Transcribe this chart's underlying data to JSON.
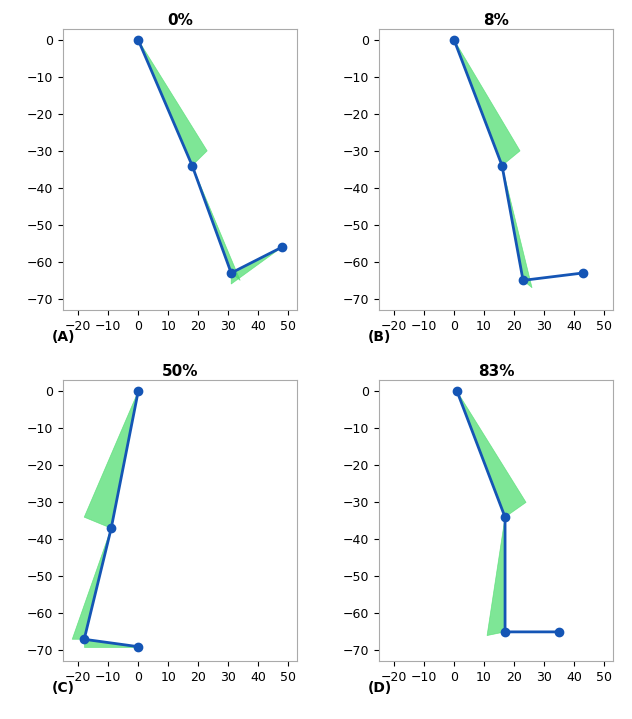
{
  "panels": [
    {
      "title": "0%",
      "label": "(A)",
      "xlim": [
        -25,
        53
      ],
      "ylim": [
        -73,
        3
      ],
      "xticks": [
        -20,
        -10,
        0,
        10,
        20,
        30,
        40,
        50
      ],
      "yticks": [
        -70,
        -60,
        -50,
        -40,
        -30,
        -20,
        -10,
        0
      ],
      "joints": [
        [
          0,
          0
        ],
        [
          18,
          -34
        ],
        [
          31,
          -63
        ],
        [
          48,
          -56
        ]
      ],
      "bands": [
        [
          [
            0,
            0
          ],
          [
            0,
            0
          ],
          [
            23,
            -30
          ],
          [
            18,
            -34
          ]
        ],
        [
          [
            18,
            -34
          ],
          [
            18,
            -34
          ],
          [
            34,
            -65
          ],
          [
            31,
            -63
          ]
        ],
        [
          [
            31,
            -63
          ],
          [
            31,
            -66
          ],
          [
            48,
            -56
          ],
          [
            48,
            -56
          ]
        ]
      ]
    },
    {
      "title": "8%",
      "label": "(B)",
      "xlim": [
        -25,
        53
      ],
      "ylim": [
        -73,
        3
      ],
      "xticks": [
        -20,
        -10,
        0,
        10,
        20,
        30,
        40,
        50
      ],
      "yticks": [
        -70,
        -60,
        -50,
        -40,
        -30,
        -20,
        -10,
        0
      ],
      "joints": [
        [
          0,
          0
        ],
        [
          16,
          -34
        ],
        [
          23,
          -65
        ],
        [
          43,
          -63
        ]
      ],
      "bands": [
        [
          [
            0,
            0
          ],
          [
            0,
            0
          ],
          [
            22,
            -30
          ],
          [
            16,
            -34
          ]
        ],
        [
          [
            16,
            -34
          ],
          [
            16,
            -34
          ],
          [
            26,
            -67
          ],
          [
            23,
            -65
          ]
        ],
        [
          [
            23,
            -65
          ],
          [
            23,
            -65
          ],
          [
            43,
            -63
          ],
          [
            43,
            -63
          ]
        ]
      ]
    },
    {
      "title": "50%",
      "label": "(C)",
      "xlim": [
        -25,
        53
      ],
      "ylim": [
        -73,
        3
      ],
      "xticks": [
        -20,
        -10,
        0,
        10,
        20,
        30,
        40,
        50
      ],
      "yticks": [
        -70,
        -60,
        -50,
        -40,
        -30,
        -20,
        -10,
        0
      ],
      "joints": [
        [
          0,
          0
        ],
        [
          -9,
          -37
        ],
        [
          -18,
          -67
        ],
        [
          0,
          -69
        ]
      ],
      "bands": [
        [
          [
            0,
            0
          ],
          [
            0,
            0
          ],
          [
            -18,
            -34
          ],
          [
            -9,
            -37
          ]
        ],
        [
          [
            -9,
            -37
          ],
          [
            -9,
            -37
          ],
          [
            -22,
            -67
          ],
          [
            -18,
            -67
          ]
        ],
        [
          [
            -18,
            -67
          ],
          [
            -18,
            -69
          ],
          [
            0,
            -69
          ],
          [
            0,
            -69
          ]
        ]
      ]
    },
    {
      "title": "83%",
      "label": "(D)",
      "xlim": [
        -25,
        53
      ],
      "ylim": [
        -73,
        3
      ],
      "xticks": [
        -20,
        -10,
        0,
        10,
        20,
        30,
        40,
        50
      ],
      "yticks": [
        -70,
        -60,
        -50,
        -40,
        -30,
        -20,
        -10,
        0
      ],
      "joints": [
        [
          1,
          0
        ],
        [
          17,
          -34
        ],
        [
          17,
          -65
        ],
        [
          35,
          -65
        ]
      ],
      "bands": [
        [
          [
            1,
            0
          ],
          [
            1,
            0
          ],
          [
            24,
            -30
          ],
          [
            17,
            -34
          ]
        ],
        [
          [
            17,
            -34
          ],
          [
            17,
            -34
          ],
          [
            11,
            -66
          ],
          [
            17,
            -65
          ]
        ],
        [
          [
            17,
            -65
          ],
          [
            17,
            -65
          ],
          [
            35,
            -65
          ],
          [
            35,
            -65
          ]
        ]
      ]
    }
  ],
  "line_color": "#1455b5",
  "fill_color": "#4ddd6e",
  "fill_alpha": 0.72,
  "fill_edge_color": "#4ddd6e",
  "line_width": 2.0,
  "marker_size": 6,
  "marker_color": "#1455b5",
  "background_color": "#ffffff",
  "tick_fontsize": 9,
  "title_fontsize": 11,
  "label_fontsize": 10
}
